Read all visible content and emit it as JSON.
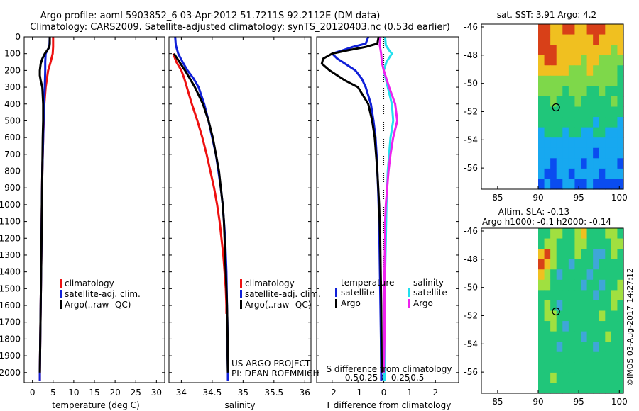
{
  "header": {
    "title_line1": "Argo profile: aoml 5903852_6 03-Apr-2012 51.7211S 92.2112E (DM data)",
    "title_line2": "Climatology: CARS2009. Satellite-adjusted climatology: synTS_20120403.nc (0.53d earlier)"
  },
  "colors": {
    "climatology": "#ee1111",
    "satellite": "#1020d8",
    "argo": "#000000",
    "salinity_satellite": "#22e0ee",
    "salinity_argo": "#ee22ee"
  },
  "legend_profiles": {
    "climatology": "climatology",
    "satellite": "satellite-adj. clim.",
    "argo": "Argo(..raw -QC)"
  },
  "legend_diff": {
    "temperature_header": "temperature",
    "salinity_header": "salinity",
    "satellite": "satellite",
    "argo": "Argo"
  },
  "credit": {
    "line1": "US ARGO PROJECT",
    "line2": "PI: DEAN ROEMMICH"
  },
  "timestamp": "©IMOS 03-Aug-2017 14:27:12",
  "map_sst": {
    "title": "sat. SST: 3.91 Argo: 4.2"
  },
  "map_sla": {
    "title1": "Altim. SLA: -0.13",
    "title2": "Argo h1000: -0.1 h2000: -0.14"
  },
  "chart_data": [
    {
      "type": "line",
      "name": "temperature",
      "xlabel": "temperature (deg C)",
      "ylabel": "",
      "xlim": [
        -2,
        32
      ],
      "ylim": [
        2060,
        0
      ],
      "xticks": [
        0,
        5,
        10,
        15,
        20,
        25,
        30
      ],
      "yticks": [
        0,
        100,
        200,
        300,
        400,
        500,
        600,
        700,
        800,
        900,
        1000,
        1100,
        1200,
        1300,
        1400,
        1500,
        1600,
        1700,
        1800,
        1900,
        2000
      ],
      "series": [
        {
          "name": "climatology",
          "color": "red",
          "depth": [
            0,
            60,
            100,
            150,
            200,
            300,
            400,
            600,
            800,
            1000,
            1200,
            1400,
            1600,
            1800,
            2000,
            2050
          ],
          "values": [
            5.0,
            5.0,
            4.9,
            4.4,
            3.8,
            3.2,
            2.9,
            2.6,
            2.4,
            2.3,
            2.2,
            2.1,
            2.0,
            1.9,
            1.8,
            1.8
          ]
        },
        {
          "name": "satellite-adj. clim.",
          "color": "blue",
          "depth": [
            0,
            60,
            80,
            100,
            150,
            200,
            300,
            400,
            600,
            800,
            1000,
            1200,
            1400,
            1600,
            1800,
            2000,
            2050
          ],
          "values": [
            4.2,
            4.1,
            3.6,
            3.2,
            3.1,
            3.1,
            3.0,
            2.8,
            2.6,
            2.4,
            2.3,
            2.2,
            2.1,
            2.0,
            1.9,
            1.8,
            1.8
          ]
        },
        {
          "name": "Argo",
          "color": "black",
          "depth": [
            0,
            40,
            60,
            80,
            100,
            130,
            160,
            200,
            230,
            260,
            300,
            400,
            500,
            600,
            800,
            1000,
            1200,
            1400,
            1600,
            1800,
            2000
          ],
          "values": [
            4.2,
            4.2,
            4.1,
            3.6,
            3.0,
            2.4,
            2.0,
            1.8,
            1.8,
            2.0,
            2.4,
            2.6,
            2.6,
            2.5,
            2.4,
            2.3,
            2.2,
            2.1,
            2.0,
            1.9,
            1.8
          ]
        }
      ]
    },
    {
      "type": "line",
      "name": "salinity",
      "xlabel": "salinity",
      "ylabel": "",
      "xlim": [
        33.8,
        36.1
      ],
      "ylim": [
        2060,
        0
      ],
      "xticks": [
        34,
        34.5,
        35,
        35.5,
        36
      ],
      "xticklabels": [
        "34",
        "34.5",
        "35",
        "35.5",
        "36"
      ],
      "series": [
        {
          "name": "climatology",
          "color": "red",
          "depth": [
            100,
            150,
            200,
            250,
            300,
            400,
            500,
            600,
            700,
            800,
            900,
            1000,
            1100,
            1200,
            1300,
            1400,
            1500,
            1600,
            1650
          ],
          "values": [
            33.87,
            33.92,
            34.0,
            34.05,
            34.09,
            34.17,
            34.26,
            34.34,
            34.41,
            34.47,
            34.53,
            34.58,
            34.62,
            34.65,
            34.68,
            34.7,
            34.72,
            34.73,
            34.73
          ]
        },
        {
          "name": "satellite-adj. clim.",
          "color": "blue",
          "depth": [
            0,
            50,
            100,
            150,
            200,
            250,
            300,
            400,
            500,
            600,
            700,
            800,
            900,
            1000,
            1100,
            1200,
            1300,
            1400,
            1500,
            1600,
            1700,
            1800,
            1900,
            2000,
            2050
          ],
          "values": [
            33.9,
            33.91,
            33.95,
            34.02,
            34.1,
            34.2,
            34.28,
            34.37,
            34.44,
            34.5,
            34.56,
            34.6,
            34.64,
            34.67,
            34.69,
            34.71,
            34.72,
            34.73,
            34.735,
            34.74,
            34.745,
            34.75,
            34.75,
            34.755,
            34.755
          ]
        },
        {
          "name": "Argo",
          "color": "black",
          "depth": [
            100,
            150,
            200,
            250,
            300,
            400,
            500,
            600,
            700,
            800,
            900,
            1000,
            1100,
            1200,
            1300,
            1400,
            1500,
            1600,
            1700,
            1800,
            1900,
            2000
          ],
          "values": [
            33.88,
            33.97,
            34.06,
            34.14,
            34.22,
            34.35,
            34.44,
            34.51,
            34.56,
            34.61,
            34.64,
            34.67,
            34.69,
            34.7,
            34.71,
            34.72,
            34.73,
            34.74,
            34.745,
            34.75,
            34.75,
            34.755
          ]
        }
      ]
    },
    {
      "type": "line",
      "name": "difference",
      "xlabel": "T difference from climatology",
      "xlabel_top": "S difference from climatology",
      "xlim": [
        -2.6,
        2.9
      ],
      "ylim": [
        2060,
        0
      ],
      "xticks": [
        -2,
        -1,
        0,
        1,
        2
      ],
      "xticklabels": [
        "-2",
        "-1",
        "0",
        "1",
        "2"
      ],
      "sticks": [
        -0.5,
        -0.25,
        0,
        0.25,
        0.5
      ],
      "sticklabels": [
        "-0.5",
        "-0.25",
        "0",
        "0.25",
        "0.5"
      ],
      "series": [
        {
          "name": "temperature satellite",
          "color": "blue",
          "depth": [
            0,
            40,
            60,
            80,
            100,
            130,
            160,
            200,
            250,
            300,
            400,
            500,
            600,
            700,
            800,
            900,
            1000,
            1200,
            1400,
            1600,
            1800,
            2000,
            2050
          ],
          "values": [
            -0.6,
            -0.7,
            -1.2,
            -1.6,
            -2.0,
            -1.8,
            -1.5,
            -1.1,
            -0.85,
            -0.7,
            -0.5,
            -0.4,
            -0.32,
            -0.28,
            -0.25,
            -0.22,
            -0.2,
            -0.17,
            -0.15,
            -0.13,
            -0.11,
            -0.1,
            -0.1
          ]
        },
        {
          "name": "temperature Argo",
          "color": "black",
          "depth": [
            0,
            40,
            60,
            80,
            100,
            130,
            160,
            200,
            230,
            260,
            300,
            400,
            500,
            600,
            800,
            1000,
            1200,
            1400,
            1600,
            1800,
            2000
          ],
          "values": [
            -0.2,
            -0.25,
            -0.7,
            -1.4,
            -2.0,
            -2.35,
            -2.4,
            -2.1,
            -1.8,
            -1.5,
            -1.0,
            -0.6,
            -0.45,
            -0.35,
            -0.25,
            -0.18,
            -0.14,
            -0.12,
            -0.1,
            -0.09,
            -0.08
          ]
        },
        {
          "name": "salinity satellite",
          "color": "cyan",
          "depth": [
            0,
            50,
            80,
            100,
            150,
            200,
            300,
            400,
            500,
            600,
            700,
            800,
            900,
            1000,
            1200,
            1400,
            1600,
            1800,
            2000,
            2050
          ],
          "values": [
            0.02,
            0.03,
            0.08,
            0.12,
            0.04,
            0.0,
            0.06,
            0.12,
            0.14,
            0.1,
            0.08,
            0.06,
            0.05,
            0.04,
            0.03,
            0.02,
            0.02,
            0.01,
            0.01,
            0.01
          ]
        },
        {
          "name": "salinity Argo",
          "color": "magenta",
          "depth": [
            0,
            50,
            100,
            150,
            200,
            300,
            400,
            500,
            600,
            700,
            800,
            900,
            1000,
            1100,
            1200,
            1400,
            1600,
            1800,
            2000
          ],
          "values": [
            -0.05,
            -0.06,
            -0.04,
            -0.03,
            0.0,
            0.08,
            0.17,
            0.2,
            0.14,
            0.1,
            0.07,
            0.05,
            0.03,
            0.02,
            0.02,
            0.01,
            0.01,
            0.01,
            0.0
          ]
        }
      ]
    },
    {
      "type": "heatmap",
      "name": "satellite SST map",
      "xlim": [
        83,
        100.5
      ],
      "ylim": [
        -57.5,
        -45.8
      ],
      "xticks": [
        85,
        90,
        95,
        100
      ],
      "yticks": [
        -46,
        -48,
        -50,
        -52,
        -54,
        -56
      ],
      "data_lon_min": 90,
      "float_lon": 92.2,
      "float_lat": -51.7,
      "grid_rows": [
        [
          5,
          5,
          4,
          4,
          5,
          5,
          4,
          4,
          5,
          5,
          5,
          4,
          4,
          4
        ],
        [
          5,
          5,
          4,
          4,
          4,
          4,
          4,
          4,
          4,
          5,
          4,
          4,
          4,
          4
        ],
        [
          5,
          5,
          5,
          4,
          4,
          4,
          4,
          4,
          4,
          4,
          4,
          4,
          3,
          4
        ],
        [
          4,
          5,
          5,
          4,
          4,
          4,
          4,
          3,
          4,
          4,
          3,
          3,
          3,
          3
        ],
        [
          4,
          4,
          4,
          4,
          4,
          3,
          3,
          3,
          4,
          3,
          3,
          3,
          3,
          2
        ],
        [
          3,
          3,
          3,
          3,
          3,
          3,
          3,
          3,
          3,
          3,
          3,
          3,
          3,
          2
        ],
        [
          3,
          3,
          3,
          3,
          2,
          3,
          3,
          3,
          2,
          2,
          3,
          2,
          2,
          2
        ],
        [
          2,
          2,
          3,
          2,
          2,
          2,
          3,
          2,
          2,
          2,
          2,
          2,
          3,
          2
        ],
        [
          2,
          2,
          2,
          2,
          2,
          2,
          2,
          2,
          2,
          2,
          2,
          2,
          2,
          2
        ],
        [
          2,
          2,
          2,
          2,
          2,
          2,
          2,
          2,
          2,
          1,
          2,
          2,
          2,
          1
        ],
        [
          1,
          2,
          2,
          2,
          1,
          2,
          2,
          1,
          1,
          2,
          2,
          1,
          1,
          1
        ],
        [
          1,
          1,
          1,
          1,
          1,
          1,
          1,
          1,
          1,
          1,
          1,
          1,
          1,
          1
        ],
        [
          1,
          1,
          1,
          1,
          1,
          1,
          1,
          1,
          1,
          0,
          1,
          1,
          1,
          1
        ],
        [
          1,
          1,
          0,
          1,
          1,
          1,
          1,
          0,
          1,
          1,
          1,
          1,
          1,
          0
        ],
        [
          1,
          0,
          0,
          1,
          1,
          0,
          1,
          1,
          1,
          1,
          0,
          1,
          1,
          1
        ],
        [
          0,
          1,
          0,
          0,
          1,
          1,
          0,
          0,
          1,
          0,
          0,
          0,
          0,
          0
        ]
      ],
      "palette": [
        "#0a4cf0",
        "#17a8f0",
        "#20c67a",
        "#7ed84a",
        "#f0c020",
        "#d84018"
      ]
    },
    {
      "type": "heatmap",
      "name": "altimeter SLA map",
      "xlim": [
        83,
        100.5
      ],
      "ylim": [
        -57.5,
        -45.8
      ],
      "xticks": [
        85,
        90,
        95,
        100
      ],
      "yticks": [
        -46,
        -48,
        -50,
        -52,
        -54,
        -56
      ],
      "data_lon_min": 90,
      "float_lon": 92.2,
      "float_lat": -51.7,
      "grid_rows": [
        [
          2,
          2,
          3,
          3,
          2,
          2,
          3,
          4,
          2,
          2,
          2,
          3,
          3,
          2
        ],
        [
          2,
          3,
          3,
          2,
          2,
          2,
          3,
          3,
          2,
          2,
          2,
          2,
          3,
          3
        ],
        [
          4,
          5,
          3,
          2,
          2,
          2,
          3,
          2,
          2,
          1,
          1,
          2,
          3,
          2
        ],
        [
          5,
          4,
          3,
          2,
          2,
          1,
          2,
          2,
          2,
          1,
          2,
          2,
          2,
          2
        ],
        [
          4,
          3,
          2,
          1,
          2,
          2,
          2,
          2,
          1,
          2,
          2,
          2,
          2,
          2
        ],
        [
          3,
          3,
          2,
          2,
          2,
          2,
          2,
          1,
          2,
          2,
          1,
          2,
          2,
          3
        ],
        [
          2,
          2,
          2,
          2,
          2,
          2,
          2,
          2,
          2,
          1,
          2,
          2,
          3,
          3
        ],
        [
          2,
          3,
          2,
          1,
          2,
          2,
          2,
          2,
          2,
          2,
          2,
          2,
          3,
          2
        ],
        [
          2,
          3,
          3,
          2,
          2,
          2,
          2,
          2,
          2,
          2,
          3,
          2,
          2,
          2
        ],
        [
          2,
          2,
          3,
          2,
          1,
          2,
          2,
          2,
          2,
          2,
          2,
          2,
          2,
          2
        ],
        [
          2,
          2,
          2,
          2,
          2,
          2,
          2,
          1,
          2,
          2,
          2,
          3,
          2,
          2
        ],
        [
          2,
          2,
          2,
          1,
          2,
          2,
          2,
          2,
          2,
          1,
          2,
          2,
          2,
          2
        ],
        [
          2,
          2,
          2,
          2,
          2,
          2,
          2,
          2,
          2,
          2,
          2,
          2,
          2,
          2
        ],
        [
          2,
          2,
          2,
          2,
          2,
          2,
          2,
          2,
          2,
          2,
          2,
          2,
          2,
          2
        ],
        [
          2,
          2,
          3,
          2,
          2,
          2,
          2,
          2,
          2,
          2,
          2,
          2,
          2,
          2
        ],
        [
          2,
          2,
          2,
          2,
          2,
          2,
          2,
          2,
          2,
          2,
          2,
          2,
          2,
          2
        ]
      ],
      "palette": [
        "#0a4cf0",
        "#3fa6d8",
        "#20c67a",
        "#a0e040",
        "#f0c020",
        "#d84018"
      ]
    }
  ]
}
